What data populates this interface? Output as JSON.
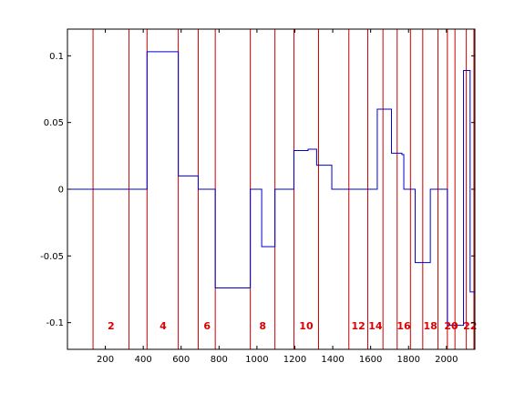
{
  "chart_data": {
    "type": "line",
    "title": "",
    "xlabel": "",
    "ylabel": "",
    "xlim": [
      0,
      2150
    ],
    "ylim": [
      -0.12,
      0.12
    ],
    "grid": false,
    "xticks": [
      200,
      400,
      600,
      800,
      1000,
      1200,
      1400,
      1600,
      1800,
      2000
    ],
    "xtick_labels": [
      "200",
      "400",
      "600",
      "800",
      "1000",
      "1200",
      "1400",
      "1600",
      "1800",
      "2000"
    ],
    "yticks": [
      0.1,
      0.05,
      0,
      -0.05,
      -0.1
    ],
    "ytick_labels": [
      "0.1",
      "0.05",
      "0",
      "-0.05",
      "-0.1"
    ],
    "series": [
      {
        "color": "#0000cc",
        "style": "step",
        "steps": [
          {
            "x0": 0,
            "x1": 420,
            "y": 0
          },
          {
            "x0": 420,
            "x1": 585,
            "y": 0.103
          },
          {
            "x0": 585,
            "x1": 690,
            "y": 0.01
          },
          {
            "x0": 690,
            "x1": 780,
            "y": 0
          },
          {
            "x0": 780,
            "x1": 965,
            "y": -0.074
          },
          {
            "x0": 965,
            "x1": 1025,
            "y": 0
          },
          {
            "x0": 1025,
            "x1": 1095,
            "y": -0.043
          },
          {
            "x0": 1095,
            "x1": 1195,
            "y": 0
          },
          {
            "x0": 1195,
            "x1": 1270,
            "y": 0.029
          },
          {
            "x0": 1270,
            "x1": 1315,
            "y": 0.03
          },
          {
            "x0": 1315,
            "x1": 1395,
            "y": 0.018
          },
          {
            "x0": 1395,
            "x1": 1635,
            "y": 0
          },
          {
            "x0": 1635,
            "x1": 1710,
            "y": 0.06
          },
          {
            "x0": 1710,
            "x1": 1765,
            "y": 0.027
          },
          {
            "x0": 1765,
            "x1": 1775,
            "y": 0.026
          },
          {
            "x0": 1775,
            "x1": 1835,
            "y": 0
          },
          {
            "x0": 1835,
            "x1": 1915,
            "y": -0.055
          },
          {
            "x0": 1915,
            "x1": 2005,
            "y": 0
          },
          {
            "x0": 2005,
            "x1": 2090,
            "y": -0.102
          },
          {
            "x0": 2090,
            "x1": 2125,
            "y": 0.089
          },
          {
            "x0": 2125,
            "x1": 2150,
            "y": -0.077
          }
        ]
      }
    ],
    "boundaries": {
      "color": "#cc0000",
      "x": [
        135,
        325,
        420,
        585,
        690,
        780,
        965,
        1095,
        1195,
        1325,
        1485,
        1585,
        1665,
        1740,
        1810,
        1875,
        1955,
        2005,
        2045,
        2105,
        2145
      ]
    },
    "segment_labels": {
      "color": "#dd0000",
      "y": -0.105,
      "items": [
        {
          "x": 230,
          "text": "2"
        },
        {
          "x": 505,
          "text": "4"
        },
        {
          "x": 737,
          "text": "6"
        },
        {
          "x": 1030,
          "text": "8"
        },
        {
          "x": 1260,
          "text": "10"
        },
        {
          "x": 1535,
          "text": "12"
        },
        {
          "x": 1625,
          "text": "14"
        },
        {
          "x": 1775,
          "text": "16"
        },
        {
          "x": 1915,
          "text": "18"
        },
        {
          "x": 2025,
          "text": "20"
        },
        {
          "x": 2125,
          "text": "22"
        }
      ]
    }
  }
}
